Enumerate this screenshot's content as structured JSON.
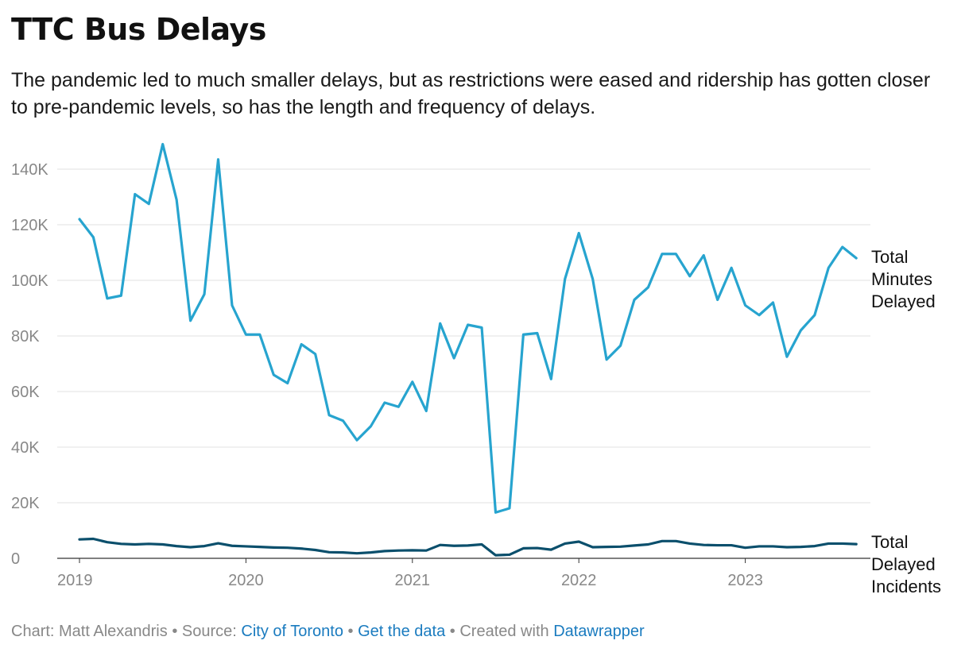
{
  "title": "TTC Bus Delays",
  "subtitle": "The pandemic led to much smaller delays, but as restrictions were eased and ridership has gotten closer to pre-pandemic levels, so has the length and frequency of delays.",
  "footer": {
    "chart_by": "Chart: Matt Alexandris",
    "separator": "•",
    "source_prefix": "Source:",
    "source_link": "City of Toronto",
    "get_data_link": "Get the data",
    "created_with_prefix": "Created with",
    "created_with_link": "Datawrapper"
  },
  "colors": {
    "minutes_line": "#27a4cf",
    "incidents_line": "#0b4f6c",
    "gridline": "#e0e0e0",
    "axis_text": "#888888",
    "link": "#1a7bbf"
  },
  "chart_data": {
    "type": "line",
    "x_start": "2019-01",
    "x_tick_labels": [
      "2019",
      "2020",
      "2021",
      "2022",
      "2023"
    ],
    "y_tick_labels": [
      "0",
      "20K",
      "40K",
      "60K",
      "80K",
      "100K",
      "120K",
      "140K"
    ],
    "y_ticks": [
      0,
      20000,
      40000,
      60000,
      80000,
      100000,
      120000,
      140000
    ],
    "ylim": [
      0,
      140000
    ],
    "grid": true,
    "series": [
      {
        "name": "Total Minutes Delayed",
        "label_lines": [
          "Total",
          "Minutes",
          "Delayed"
        ],
        "values": [
          122000,
          115500,
          93500,
          94500,
          131000,
          127500,
          149000,
          129000,
          85500,
          95000,
          143500,
          91000,
          80500,
          80500,
          66000,
          63000,
          77000,
          73500,
          51500,
          49500,
          42500,
          47500,
          56000,
          54500,
          63500,
          53000,
          84500,
          72000,
          84000,
          83000,
          16500,
          18000,
          80500,
          81000,
          64500,
          100500,
          117000,
          100500,
          71500,
          76500,
          93000,
          97500,
          109500,
          109500,
          101500,
          109000,
          93000,
          104500,
          91000,
          87500,
          92000,
          72500,
          82000,
          87500,
          104500,
          112000,
          108000
        ]
      },
      {
        "name": "Total Delayed Incidents",
        "label_lines": [
          "Total",
          "Delayed",
          "Incidents"
        ],
        "values": [
          6800,
          7000,
          5800,
          5200,
          5000,
          5200,
          5000,
          4400,
          4000,
          4400,
          5400,
          4500,
          4300,
          4100,
          3900,
          3800,
          3500,
          3000,
          2200,
          2100,
          1800,
          2100,
          2600,
          2800,
          2900,
          2800,
          4800,
          4500,
          4600,
          5000,
          1100,
          1300,
          3600,
          3700,
          3100,
          5300,
          6000,
          4000,
          4100,
          4200,
          4600,
          5000,
          6200,
          6200,
          5300,
          4800,
          4700,
          4700,
          3800,
          4300,
          4300,
          4000,
          4100,
          4400,
          5300,
          5300,
          5100
        ]
      }
    ]
  }
}
